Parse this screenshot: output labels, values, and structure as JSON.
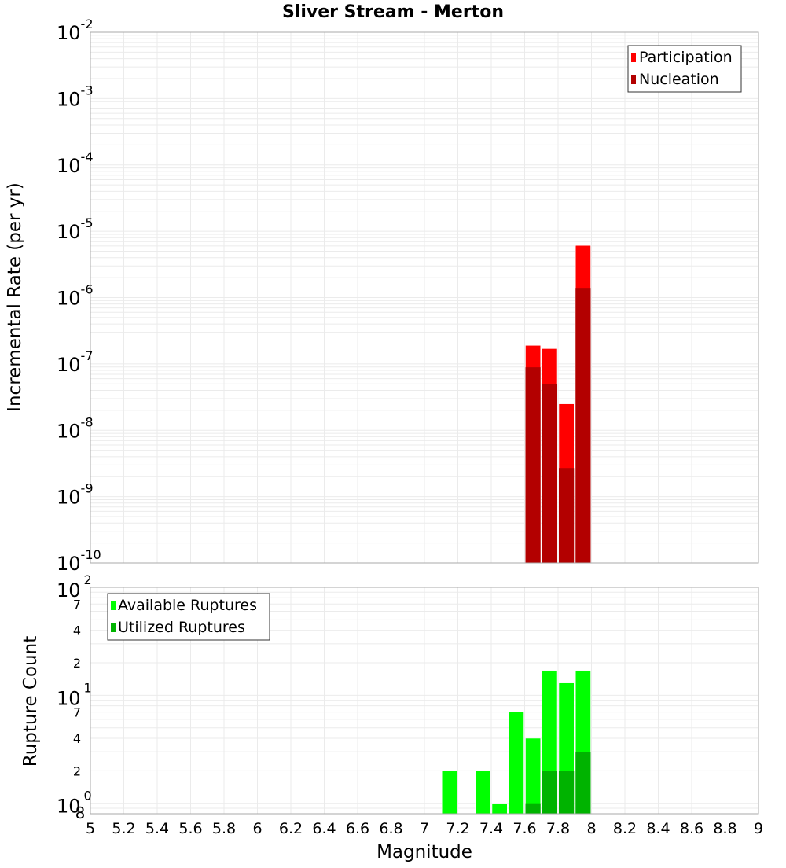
{
  "chart_data": [
    {
      "type": "bar",
      "title": "Sliver Stream - Merton",
      "xlabel": "",
      "ylabel": "Incremental Rate (per yr)",
      "yscale": "log",
      "ylim": [
        1e-10,
        0.01
      ],
      "xlim": [
        5,
        9
      ],
      "grid": true,
      "legend_position": "top-right",
      "bin_width": 0.1,
      "x": [
        7.65,
        7.75,
        7.85,
        7.95
      ],
      "series": [
        {
          "name": "Participation",
          "color": "#ff0000",
          "values": [
            1.9e-07,
            1.7e-07,
            2.5e-08,
            6.1e-06
          ]
        },
        {
          "name": "Nucleation",
          "color": "#b30000",
          "values": [
            8.9e-08,
            5e-08,
            2.7e-09,
            1.4e-06
          ]
        }
      ],
      "y_tick_labels": [
        "10^-2",
        "10^-3",
        "10^-4",
        "10^-5",
        "10^-6",
        "10^-7",
        "10^-8",
        "10^-9",
        "10^-10"
      ]
    },
    {
      "type": "bar",
      "title": "",
      "xlabel": "Magnitude",
      "ylabel": "Rupture Count",
      "yscale": "log",
      "ylim": [
        0.8,
        100
      ],
      "xlim": [
        5,
        9
      ],
      "grid": true,
      "legend_position": "top-left",
      "bin_width": 0.1,
      "x": [
        7.15,
        7.35,
        7.45,
        7.55,
        7.65,
        7.75,
        7.85,
        7.95
      ],
      "series": [
        {
          "name": "Available Ruptures",
          "color": "#00ff00",
          "values": [
            2,
            2,
            1,
            7,
            4,
            17,
            13,
            17
          ]
        },
        {
          "name": "Utilized Ruptures",
          "color": "#00b300",
          "values": [
            0,
            0,
            0,
            0,
            1,
            2,
            2,
            3
          ]
        }
      ],
      "y_tick_labels": [
        "10^2",
        "7",
        "4",
        "2",
        "10^1",
        "7",
        "4",
        "2",
        "10^0",
        "8"
      ],
      "x_tick_labels": [
        "5",
        "5.2",
        "5.4",
        "5.6",
        "5.8",
        "6",
        "6.2",
        "6.4",
        "6.6",
        "6.8",
        "7",
        "7.2",
        "7.4",
        "7.6",
        "7.8",
        "8",
        "8.2",
        "8.4",
        "8.6",
        "8.8",
        "9"
      ]
    }
  ],
  "header": {
    "title": "Sliver Stream - Merton"
  },
  "top_chart": {
    "ylabel": "Incremental Rate (per yr)",
    "legend": [
      "Participation",
      "Nucleation"
    ]
  },
  "bottom_chart": {
    "ylabel": "Rupture Count",
    "xlabel": "Magnitude",
    "legend": [
      "Available Ruptures",
      "Utilized Ruptures"
    ]
  }
}
